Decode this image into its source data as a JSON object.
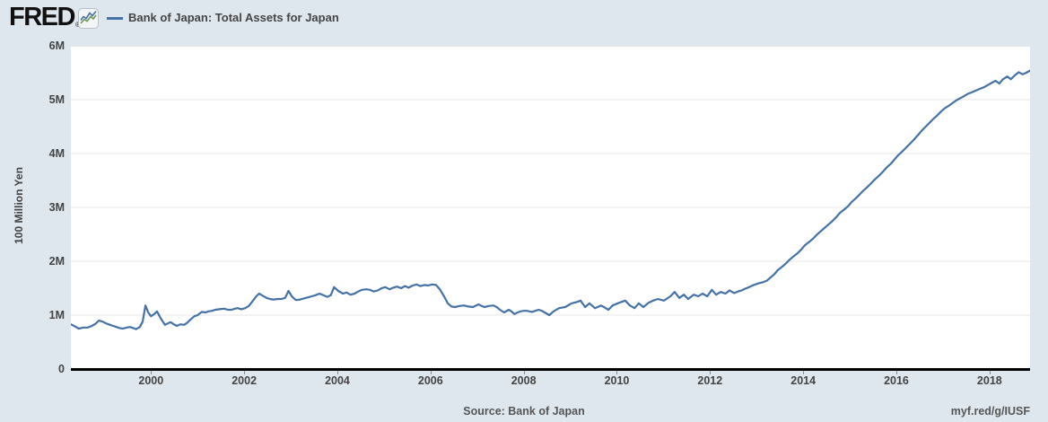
{
  "header": {
    "logo": "FRED",
    "registered_mark": "®",
    "legend_label": "Bank of Japan: Total Assets for Japan"
  },
  "footer": {
    "source": "Source: Bank of Japan",
    "short_url": "myf.red/g/IUSF"
  },
  "colors": {
    "background": "#dfe7ee",
    "plot_background": "#ffffff",
    "grid": "#e7e7e7",
    "axis": "#000000",
    "tick": "#8a8a8a",
    "text": "#444444",
    "line": "#4572a7",
    "icon_green": "#6f9654"
  },
  "chart_data": {
    "type": "line",
    "title": "Bank of Japan: Total Assets for Japan",
    "xlabel": "",
    "ylabel": "100 Million Yen",
    "xlim": [
      1998.28,
      2018.87
    ],
    "ylim": [
      0,
      6
    ],
    "grid": "horizontal",
    "legend_position": "top-left",
    "x_ticks": [
      {
        "v": 2000,
        "label": "2000"
      },
      {
        "v": 2002,
        "label": "2002"
      },
      {
        "v": 2004,
        "label": "2004"
      },
      {
        "v": 2006,
        "label": "2006"
      },
      {
        "v": 2008,
        "label": "2008"
      },
      {
        "v": 2010,
        "label": "2010"
      },
      {
        "v": 2012,
        "label": "2012"
      },
      {
        "v": 2014,
        "label": "2014"
      },
      {
        "v": 2016,
        "label": "2016"
      },
      {
        "v": 2018,
        "label": "2018"
      }
    ],
    "y_ticks": [
      {
        "v": 0,
        "label": "0"
      },
      {
        "v": 1,
        "label": "1M"
      },
      {
        "v": 2,
        "label": "2M"
      },
      {
        "v": 3,
        "label": "3M"
      },
      {
        "v": 4,
        "label": "4M"
      },
      {
        "v": 5,
        "label": "5M"
      },
      {
        "v": 6,
        "label": "6M"
      }
    ],
    "y_values_unit": "millions of 100 Million Yen (M)",
    "series": [
      {
        "name": "Bank of Japan: Total Assets for Japan",
        "color": "#4572a7",
        "points": [
          [
            1998.28,
            0.83
          ],
          [
            1998.37,
            0.79
          ],
          [
            1998.45,
            0.75
          ],
          [
            1998.55,
            0.77
          ],
          [
            1998.64,
            0.77
          ],
          [
            1998.73,
            0.8
          ],
          [
            1998.81,
            0.84
          ],
          [
            1998.88,
            0.9
          ],
          [
            1998.96,
            0.88
          ],
          [
            1999.03,
            0.85
          ],
          [
            1999.12,
            0.82
          ],
          [
            1999.19,
            0.8
          ],
          [
            1999.26,
            0.78
          ],
          [
            1999.33,
            0.76
          ],
          [
            1999.4,
            0.75
          ],
          [
            1999.48,
            0.77
          ],
          [
            1999.55,
            0.78
          ],
          [
            1999.62,
            0.76
          ],
          [
            1999.68,
            0.74
          ],
          [
            1999.76,
            0.78
          ],
          [
            1999.82,
            0.88
          ],
          [
            1999.88,
            1.18
          ],
          [
            1999.94,
            1.05
          ],
          [
            2000.0,
            0.98
          ],
          [
            2000.07,
            1.02
          ],
          [
            2000.13,
            1.07
          ],
          [
            2000.21,
            0.94
          ],
          [
            2000.3,
            0.82
          ],
          [
            2000.37,
            0.85
          ],
          [
            2000.42,
            0.87
          ],
          [
            2000.49,
            0.83
          ],
          [
            2000.55,
            0.8
          ],
          [
            2000.63,
            0.83
          ],
          [
            2000.71,
            0.82
          ],
          [
            2000.78,
            0.86
          ],
          [
            2000.85,
            0.92
          ],
          [
            2000.93,
            0.98
          ],
          [
            2001.0,
            1.0
          ],
          [
            2001.09,
            1.06
          ],
          [
            2001.17,
            1.05
          ],
          [
            2001.23,
            1.07
          ],
          [
            2001.31,
            1.08
          ],
          [
            2001.38,
            1.1
          ],
          [
            2001.47,
            1.11
          ],
          [
            2001.57,
            1.12
          ],
          [
            2001.65,
            1.1
          ],
          [
            2001.73,
            1.1
          ],
          [
            2001.8,
            1.12
          ],
          [
            2001.86,
            1.13
          ],
          [
            2001.94,
            1.11
          ],
          [
            2002.02,
            1.13
          ],
          [
            2002.1,
            1.17
          ],
          [
            2002.19,
            1.27
          ],
          [
            2002.26,
            1.35
          ],
          [
            2002.32,
            1.4
          ],
          [
            2002.4,
            1.36
          ],
          [
            2002.48,
            1.32
          ],
          [
            2002.55,
            1.3
          ],
          [
            2002.63,
            1.29
          ],
          [
            2002.72,
            1.3
          ],
          [
            2002.8,
            1.3
          ],
          [
            2002.88,
            1.32
          ],
          [
            2002.95,
            1.45
          ],
          [
            2003.03,
            1.34
          ],
          [
            2003.11,
            1.28
          ],
          [
            2003.2,
            1.29
          ],
          [
            2003.28,
            1.31
          ],
          [
            2003.37,
            1.33
          ],
          [
            2003.45,
            1.35
          ],
          [
            2003.53,
            1.37
          ],
          [
            2003.62,
            1.4
          ],
          [
            2003.7,
            1.37
          ],
          [
            2003.78,
            1.34
          ],
          [
            2003.86,
            1.37
          ],
          [
            2003.93,
            1.52
          ],
          [
            2004.02,
            1.45
          ],
          [
            2004.12,
            1.4
          ],
          [
            2004.2,
            1.42
          ],
          [
            2004.28,
            1.38
          ],
          [
            2004.37,
            1.4
          ],
          [
            2004.45,
            1.44
          ],
          [
            2004.53,
            1.47
          ],
          [
            2004.62,
            1.48
          ],
          [
            2004.7,
            1.47
          ],
          [
            2004.78,
            1.44
          ],
          [
            2004.87,
            1.46
          ],
          [
            2004.95,
            1.5
          ],
          [
            2005.03,
            1.52
          ],
          [
            2005.12,
            1.48
          ],
          [
            2005.2,
            1.51
          ],
          [
            2005.28,
            1.53
          ],
          [
            2005.37,
            1.5
          ],
          [
            2005.45,
            1.54
          ],
          [
            2005.53,
            1.51
          ],
          [
            2005.62,
            1.55
          ],
          [
            2005.7,
            1.57
          ],
          [
            2005.78,
            1.54
          ],
          [
            2005.87,
            1.56
          ],
          [
            2005.95,
            1.55
          ],
          [
            2006.03,
            1.57
          ],
          [
            2006.12,
            1.56
          ],
          [
            2006.2,
            1.48
          ],
          [
            2006.29,
            1.35
          ],
          [
            2006.37,
            1.22
          ],
          [
            2006.45,
            1.16
          ],
          [
            2006.53,
            1.15
          ],
          [
            2006.62,
            1.17
          ],
          [
            2006.72,
            1.18
          ],
          [
            2006.81,
            1.16
          ],
          [
            2006.91,
            1.15
          ],
          [
            2007.03,
            1.2
          ],
          [
            2007.1,
            1.17
          ],
          [
            2007.16,
            1.15
          ],
          [
            2007.25,
            1.17
          ],
          [
            2007.35,
            1.18
          ],
          [
            2007.42,
            1.15
          ],
          [
            2007.49,
            1.1
          ],
          [
            2007.58,
            1.05
          ],
          [
            2007.68,
            1.1
          ],
          [
            2007.74,
            1.07
          ],
          [
            2007.8,
            1.02
          ],
          [
            2007.87,
            1.05
          ],
          [
            2007.93,
            1.07
          ],
          [
            2008.0,
            1.08
          ],
          [
            2008.07,
            1.08
          ],
          [
            2008.18,
            1.06
          ],
          [
            2008.25,
            1.08
          ],
          [
            2008.32,
            1.1
          ],
          [
            2008.39,
            1.08
          ],
          [
            2008.45,
            1.05
          ],
          [
            2008.55,
            1.0
          ],
          [
            2008.64,
            1.07
          ],
          [
            2008.76,
            1.13
          ],
          [
            2008.89,
            1.15
          ],
          [
            2009.03,
            1.22
          ],
          [
            2009.13,
            1.24
          ],
          [
            2009.22,
            1.27
          ],
          [
            2009.32,
            1.15
          ],
          [
            2009.41,
            1.22
          ],
          [
            2009.53,
            1.13
          ],
          [
            2009.66,
            1.18
          ],
          [
            2009.74,
            1.14
          ],
          [
            2009.82,
            1.1
          ],
          [
            2009.91,
            1.18
          ],
          [
            2010.05,
            1.23
          ],
          [
            2010.18,
            1.27
          ],
          [
            2010.28,
            1.18
          ],
          [
            2010.38,
            1.13
          ],
          [
            2010.47,
            1.22
          ],
          [
            2010.57,
            1.15
          ],
          [
            2010.68,
            1.23
          ],
          [
            2010.78,
            1.27
          ],
          [
            2010.88,
            1.3
          ],
          [
            2011.01,
            1.27
          ],
          [
            2011.15,
            1.35
          ],
          [
            2011.24,
            1.43
          ],
          [
            2011.34,
            1.32
          ],
          [
            2011.44,
            1.38
          ],
          [
            2011.53,
            1.3
          ],
          [
            2011.65,
            1.38
          ],
          [
            2011.75,
            1.35
          ],
          [
            2011.84,
            1.4
          ],
          [
            2011.94,
            1.35
          ],
          [
            2012.04,
            1.47
          ],
          [
            2012.13,
            1.38
          ],
          [
            2012.23,
            1.43
          ],
          [
            2012.33,
            1.4
          ],
          [
            2012.42,
            1.46
          ],
          [
            2012.52,
            1.41
          ],
          [
            2012.6,
            1.44
          ],
          [
            2012.68,
            1.46
          ],
          [
            2012.75,
            1.49
          ],
          [
            2012.84,
            1.52
          ],
          [
            2012.94,
            1.56
          ],
          [
            2013.04,
            1.59
          ],
          [
            2013.13,
            1.61
          ],
          [
            2013.22,
            1.64
          ],
          [
            2013.3,
            1.7
          ],
          [
            2013.38,
            1.76
          ],
          [
            2013.46,
            1.84
          ],
          [
            2013.55,
            1.9
          ],
          [
            2013.63,
            1.96
          ],
          [
            2013.71,
            2.03
          ],
          [
            2013.79,
            2.09
          ],
          [
            2013.88,
            2.15
          ],
          [
            2013.96,
            2.22
          ],
          [
            2014.04,
            2.3
          ],
          [
            2014.13,
            2.36
          ],
          [
            2014.21,
            2.42
          ],
          [
            2014.29,
            2.49
          ],
          [
            2014.38,
            2.56
          ],
          [
            2014.46,
            2.62
          ],
          [
            2014.54,
            2.68
          ],
          [
            2014.63,
            2.75
          ],
          [
            2014.71,
            2.82
          ],
          [
            2014.79,
            2.9
          ],
          [
            2014.88,
            2.96
          ],
          [
            2014.96,
            3.02
          ],
          [
            2015.04,
            3.1
          ],
          [
            2015.13,
            3.17
          ],
          [
            2015.21,
            3.24
          ],
          [
            2015.29,
            3.31
          ],
          [
            2015.38,
            3.38
          ],
          [
            2015.46,
            3.45
          ],
          [
            2015.54,
            3.52
          ],
          [
            2015.63,
            3.59
          ],
          [
            2015.71,
            3.66
          ],
          [
            2015.79,
            3.74
          ],
          [
            2015.88,
            3.81
          ],
          [
            2015.96,
            3.89
          ],
          [
            2016.04,
            3.97
          ],
          [
            2016.13,
            4.04
          ],
          [
            2016.21,
            4.11
          ],
          [
            2016.29,
            4.18
          ],
          [
            2016.38,
            4.26
          ],
          [
            2016.46,
            4.34
          ],
          [
            2016.54,
            4.42
          ],
          [
            2016.63,
            4.5
          ],
          [
            2016.71,
            4.57
          ],
          [
            2016.79,
            4.64
          ],
          [
            2016.88,
            4.71
          ],
          [
            2016.96,
            4.78
          ],
          [
            2017.04,
            4.84
          ],
          [
            2017.13,
            4.89
          ],
          [
            2017.21,
            4.94
          ],
          [
            2017.29,
            4.99
          ],
          [
            2017.38,
            5.03
          ],
          [
            2017.46,
            5.07
          ],
          [
            2017.54,
            5.11
          ],
          [
            2017.63,
            5.14
          ],
          [
            2017.71,
            5.17
          ],
          [
            2017.79,
            5.2
          ],
          [
            2017.88,
            5.23
          ],
          [
            2017.96,
            5.27
          ],
          [
            2018.04,
            5.31
          ],
          [
            2018.13,
            5.35
          ],
          [
            2018.21,
            5.3
          ],
          [
            2018.29,
            5.38
          ],
          [
            2018.38,
            5.43
          ],
          [
            2018.46,
            5.38
          ],
          [
            2018.54,
            5.45
          ],
          [
            2018.63,
            5.51
          ],
          [
            2018.71,
            5.47
          ],
          [
            2018.79,
            5.5
          ],
          [
            2018.87,
            5.54
          ]
        ]
      }
    ]
  }
}
